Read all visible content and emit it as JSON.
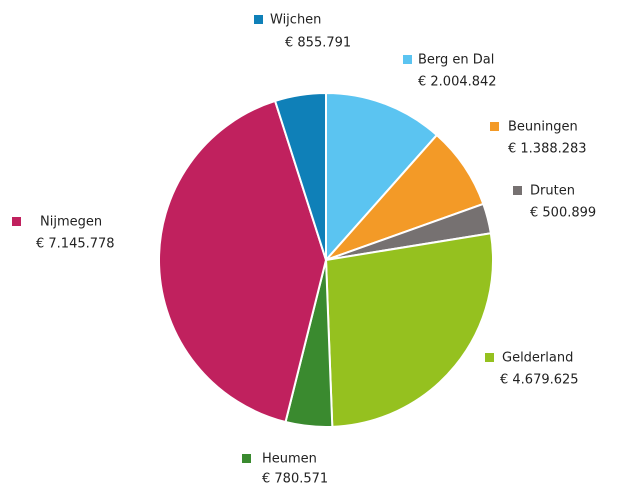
{
  "chart_data": {
    "type": "pie",
    "categories": [
      "Berg en Dal",
      "Beuningen",
      "Druten",
      "Gelderland",
      "Heumen",
      "Nijmegen",
      "Wijchen"
    ],
    "values": [
      2004842,
      1388283,
      500899,
      4679625,
      780571,
      7145778,
      855791
    ],
    "value_labels": [
      "€ 2.004.842",
      "€ 1.388.283",
      "€ 500.899",
      "€ 4.679.625",
      "€ 780.571",
      "€ 7.145.778",
      "€ 855.791"
    ],
    "colors": [
      "#5bc4f1",
      "#f39a27",
      "#767171",
      "#95c11f",
      "#3a8a2f",
      "#c0215e",
      "#0f80b8"
    ]
  }
}
